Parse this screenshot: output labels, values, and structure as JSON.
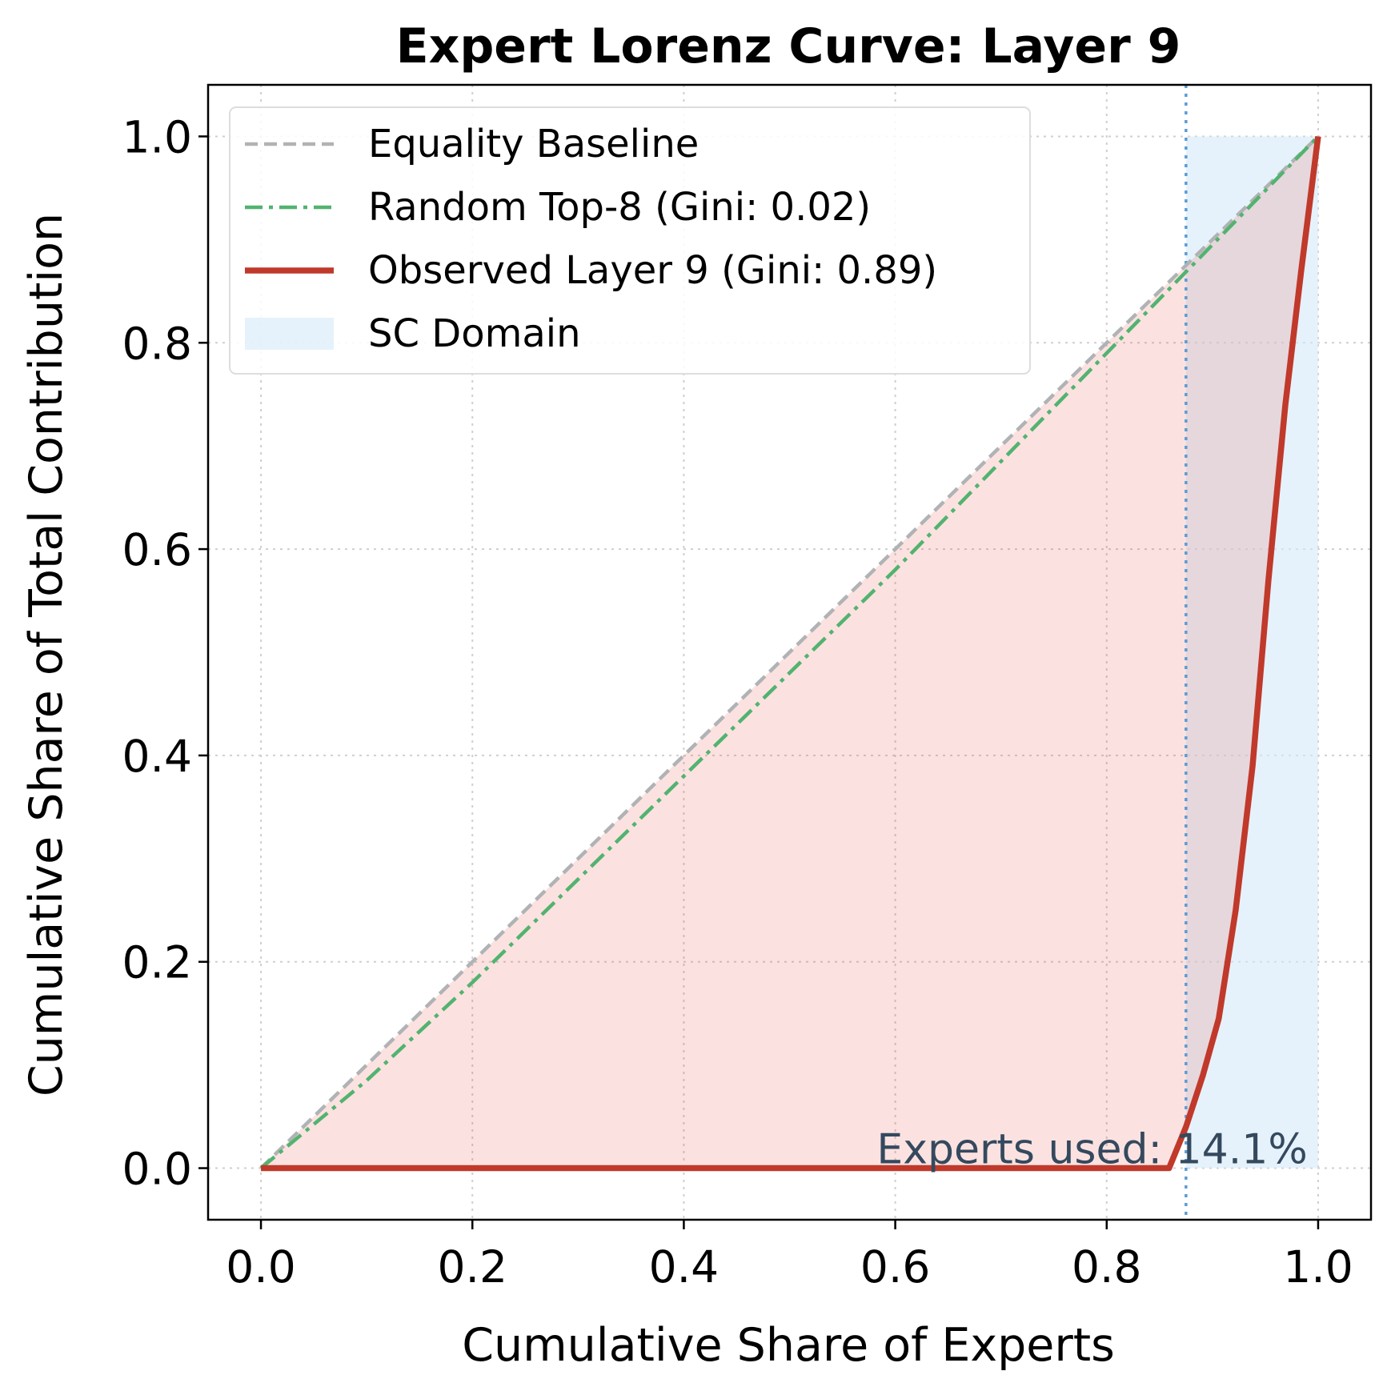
{
  "chart_data": {
    "type": "line",
    "title": "Expert Lorenz Curve: Layer 9",
    "xlabel": "Cumulative Share of Experts",
    "ylabel": "Cumulative Share of Total Contribution",
    "xlim": [
      -0.05,
      1.05
    ],
    "ylim": [
      -0.05,
      1.05
    ],
    "xticks": [
      0.0,
      0.2,
      0.4,
      0.6,
      0.8,
      1.0
    ],
    "xtick_labels": [
      "0.0",
      "0.2",
      "0.4",
      "0.6",
      "0.8",
      "1.0"
    ],
    "yticks": [
      0.0,
      0.2,
      0.4,
      0.6,
      0.8,
      1.0
    ],
    "ytick_labels": [
      "0.0",
      "0.2",
      "0.4",
      "0.6",
      "0.8",
      "1.0"
    ],
    "grid": true,
    "legend_position": "top-left",
    "series": [
      {
        "name": "Equality Baseline",
        "style": "dashed",
        "color": "#b0b3b5",
        "x": [
          0.0,
          1.0
        ],
        "y": [
          0.0,
          1.0
        ]
      },
      {
        "name": "Random Top-8 (Gini: 0.02)",
        "style": "dashdot",
        "color": "#52b36f",
        "x": [
          0.0,
          0.1,
          0.2,
          0.3,
          0.4,
          0.5,
          0.6,
          0.7,
          0.8,
          0.9,
          1.0
        ],
        "y": [
          0.0,
          0.085,
          0.18,
          0.28,
          0.38,
          0.48,
          0.58,
          0.685,
          0.79,
          0.895,
          1.0
        ]
      },
      {
        "name": "Observed Layer 9 (Gini: 0.89)",
        "style": "solid",
        "color": "#c0392b",
        "x": [
          0.0,
          0.859,
          0.875,
          0.891,
          0.906,
          0.922,
          0.938,
          0.953,
          0.969,
          0.984,
          1.0
        ],
        "y": [
          0.0,
          0.0,
          0.04,
          0.09,
          0.145,
          0.25,
          0.39,
          0.57,
          0.74,
          0.87,
          1.0
        ]
      }
    ],
    "shaded_region": {
      "name": "SC Domain",
      "color": "#d6eaf8",
      "x_start": 0.875,
      "x_end": 1.0,
      "y_top": 1.0
    },
    "fill_between": {
      "color": "#e74c3c",
      "description_series": [
        "Equality Baseline",
        "Observed Layer 9 (Gini: 0.89)"
      ]
    },
    "vline": {
      "x": 0.875,
      "color": "#5b9bd5",
      "style": "dotted"
    },
    "annotation": {
      "text": "Experts used: 14.1%",
      "x": 0.99,
      "y": 0.0,
      "color": "#34495e"
    }
  }
}
